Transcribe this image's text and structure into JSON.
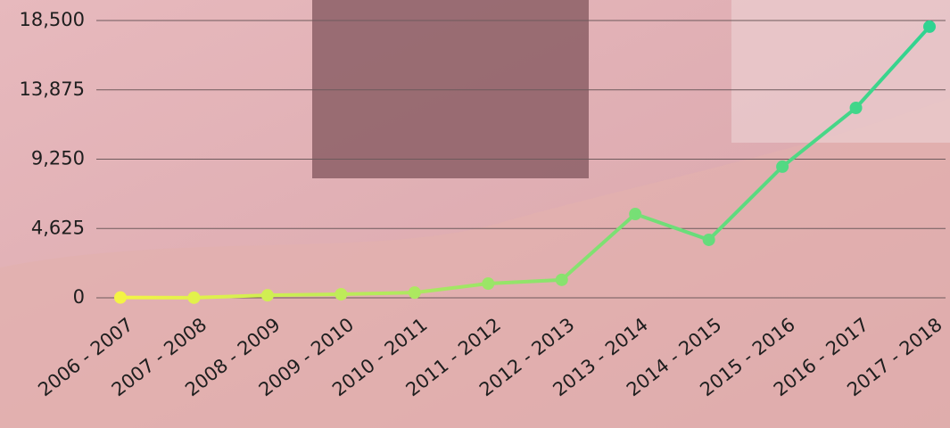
{
  "chart_data": {
    "type": "line",
    "categories": [
      "2006 - 2007",
      "2007 - 2008",
      "2008 - 2009",
      "2009 - 2010",
      "2010 - 2011",
      "2011 - 2012",
      "2012 - 2013",
      "2013 - 2014",
      "2014 - 2015",
      "2015 - 2016",
      "2016 - 2017",
      "2017 - 2018"
    ],
    "values": [
      20,
      10,
      170,
      240,
      350,
      950,
      1200,
      5590,
      3870,
      8750,
      12670,
      18090
    ],
    "colors": [
      "#f4f444",
      "#2fd391"
    ],
    "ylim": [
      0,
      18500
    ],
    "yticks": [
      0,
      {
        "value": 4625,
        "label": "4,625"
      },
      {
        "value": 9250,
        "label": "9,250"
      },
      {
        "value": 13875,
        "label": "13,875"
      },
      {
        "value": 18500,
        "label": "18,500"
      }
    ],
    "grid": true
  }
}
